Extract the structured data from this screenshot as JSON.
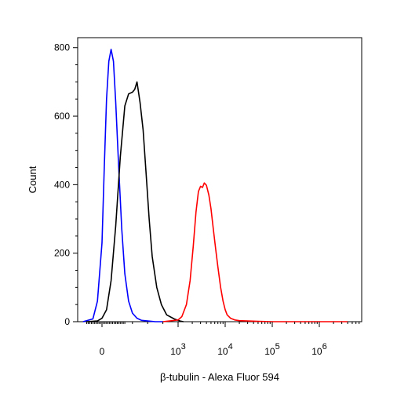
{
  "chart_data": {
    "type": "line",
    "title": "",
    "xlabel": "β-tubulin - Alexa Fluor 594",
    "ylabel": "Count",
    "xscale": "biexponential",
    "ylim": [
      0,
      820
    ],
    "grid": false,
    "legend": "none",
    "y_ticks": [
      {
        "label": "0",
        "value": 0
      },
      {
        "label": "200",
        "value": 200
      },
      {
        "label": "400",
        "value": 400
      },
      {
        "label": "600",
        "value": 600
      },
      {
        "label": "800",
        "value": 800
      }
    ],
    "x_ticks": [
      {
        "label": "0",
        "value": 0
      },
      {
        "base": "10",
        "exp": "3",
        "value": 1000
      },
      {
        "base": "10",
        "exp": "4",
        "value": 10000
      },
      {
        "base": "10",
        "exp": "5",
        "value": 100000
      },
      {
        "base": "10",
        "exp": "6",
        "value": 1000000
      }
    ],
    "series": [
      {
        "color": "#0000ff",
        "x": [
          -250,
          -120,
          -60,
          0,
          30,
          60,
          90,
          120,
          150,
          180,
          220,
          260,
          300,
          350,
          400,
          460,
          520,
          600,
          700,
          800
        ],
        "y": [
          0,
          8,
          60,
          230,
          450,
          650,
          760,
          795,
          760,
          640,
          450,
          270,
          140,
          60,
          25,
          10,
          4,
          2,
          0,
          0
        ]
      },
      {
        "color": "#000000",
        "x": [
          -200,
          -60,
          0,
          60,
          120,
          180,
          240,
          300,
          350,
          400,
          430,
          460,
          500,
          540,
          580,
          620,
          660,
          720,
          780,
          850,
          950,
          1100,
          1300
        ],
        "y": [
          0,
          2,
          10,
          35,
          120,
          280,
          480,
          630,
          665,
          670,
          678,
          700,
          640,
          560,
          430,
          300,
          190,
          100,
          50,
          20,
          8,
          2,
          0
        ]
      },
      {
        "color": "#ff0000",
        "x": [
          800,
          1000,
          1200,
          1500,
          1800,
          2100,
          2400,
          2700,
          3000,
          3300,
          3600,
          4000,
          4500,
          5000,
          5600,
          6300,
          7000,
          8000,
          9000,
          10000,
          11000,
          13000,
          16000,
          20000,
          30000,
          50000,
          100000,
          1000000,
          4000000
        ],
        "y": [
          0,
          5,
          15,
          50,
          120,
          220,
          320,
          380,
          395,
          392,
          405,
          398,
          370,
          330,
          270,
          210,
          160,
          100,
          60,
          35,
          20,
          10,
          5,
          3,
          2,
          1,
          0,
          0,
          0
        ]
      }
    ]
  }
}
